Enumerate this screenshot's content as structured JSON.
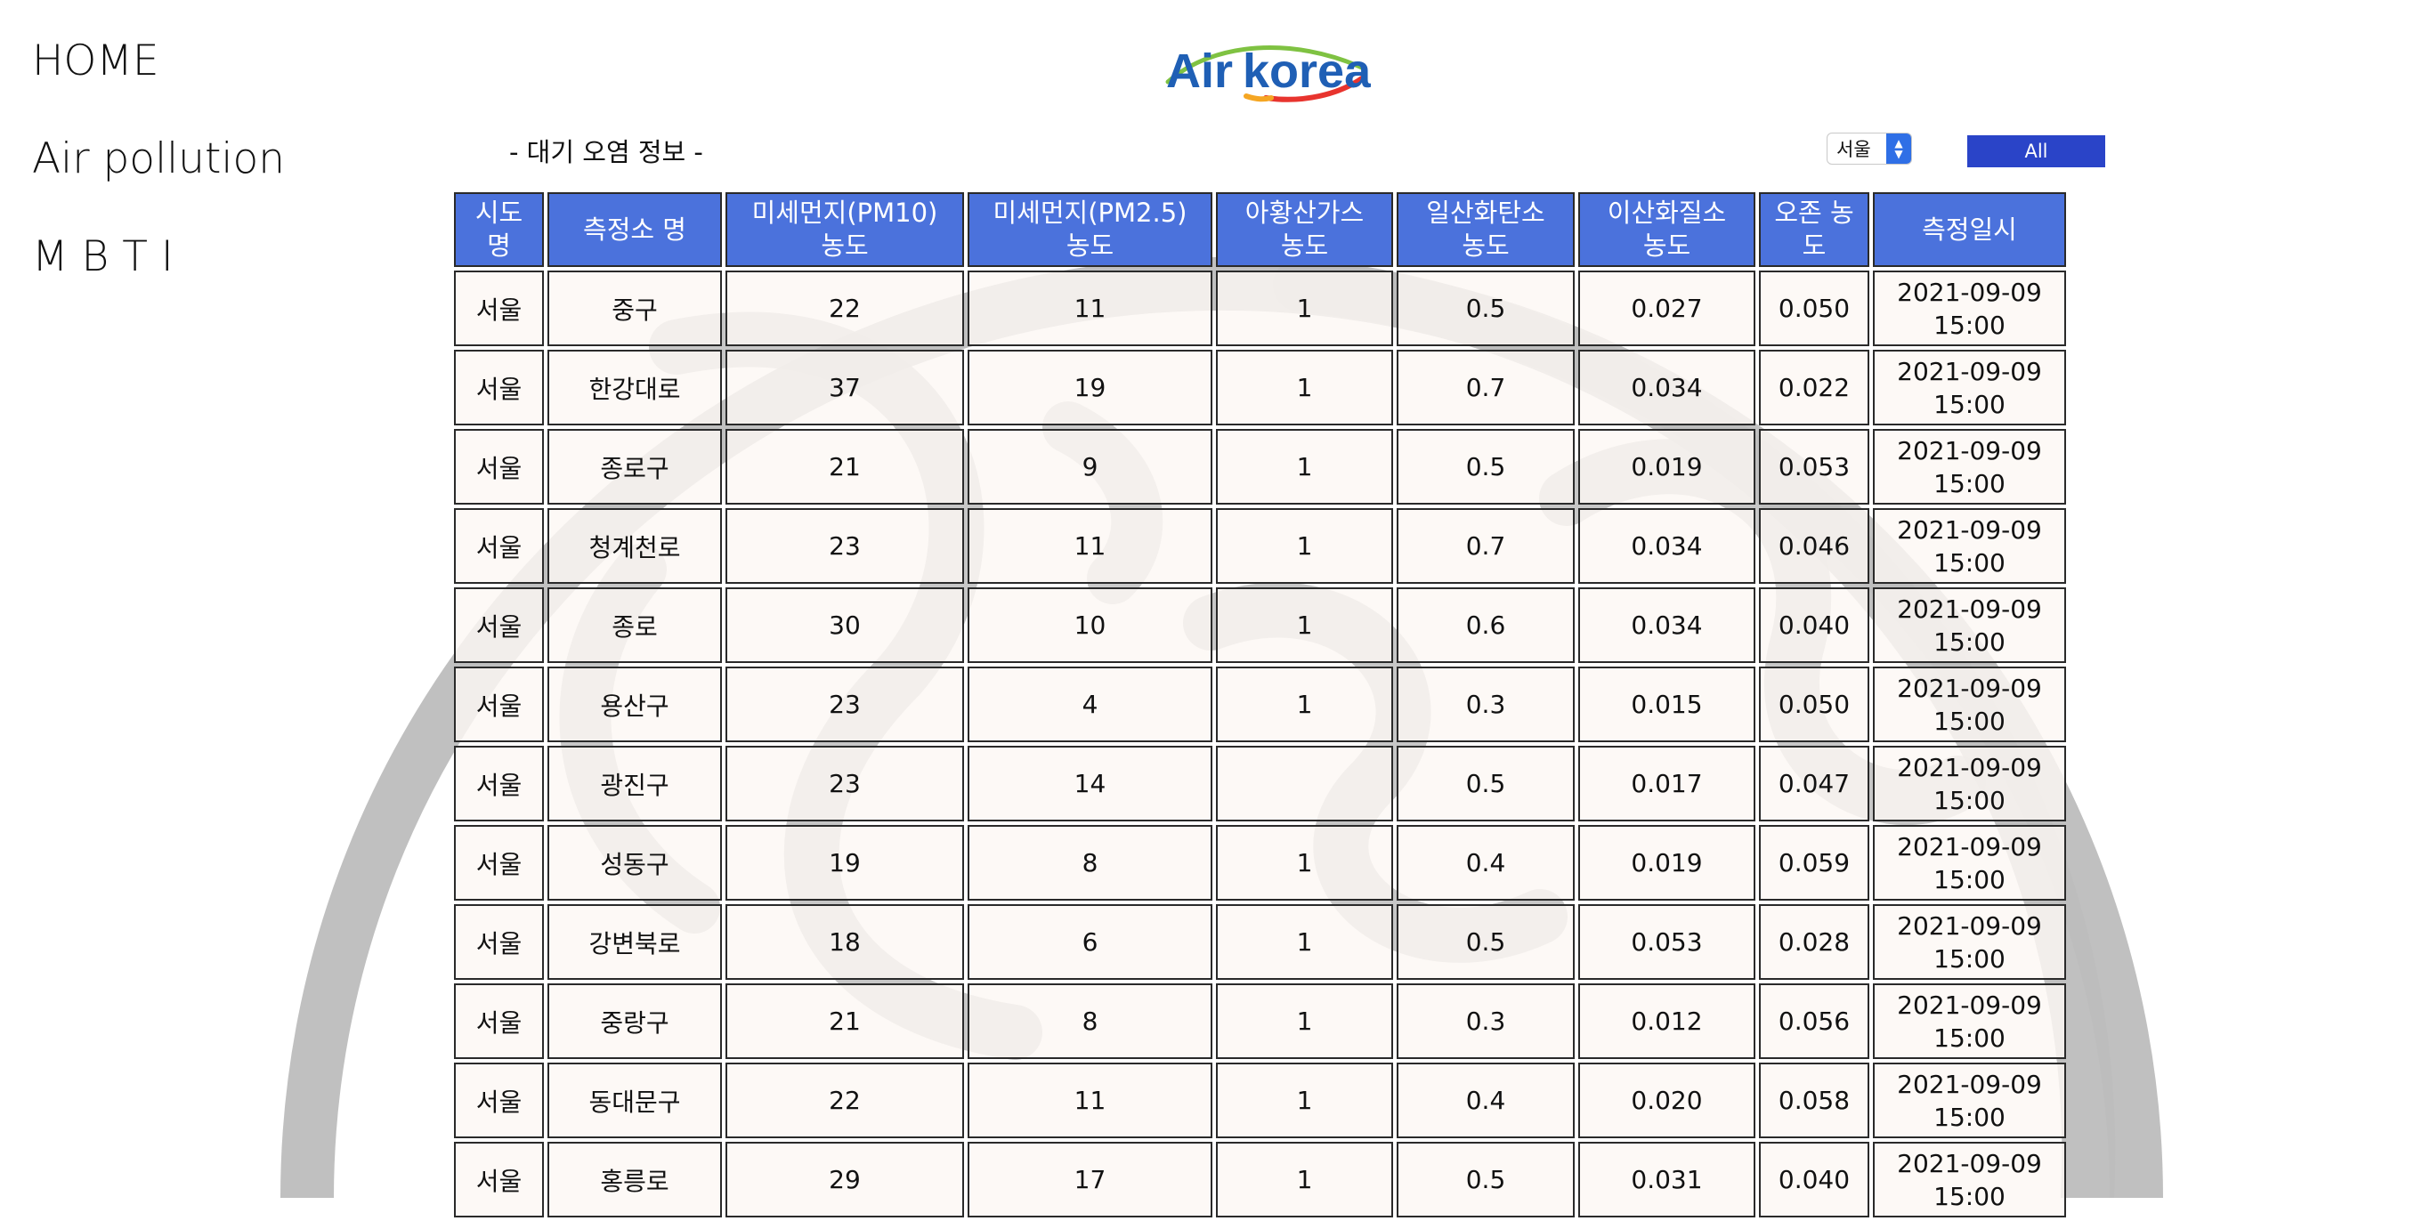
{
  "nav": {
    "items": [
      {
        "label": "HOME"
      },
      {
        "label": "Air pollution"
      },
      {
        "label": "M B T I"
      }
    ]
  },
  "logo": {
    "text_air": "Air",
    "text_korea": "korea"
  },
  "section_title": "- 대기 오염 정보 -",
  "region_select": {
    "value": "서울"
  },
  "all_button": {
    "label": "All"
  },
  "colors": {
    "header_bg": "#4b72dc",
    "button_bg": "#2a44c8",
    "cell_bg": "#fcf8f4"
  },
  "table": {
    "headers": [
      {
        "l1": "시도",
        "l2": "명"
      },
      {
        "l1": "측정소 명",
        "l2": ""
      },
      {
        "l1": "미세먼지(PM10)",
        "l2": "농도"
      },
      {
        "l1": "미세먼지(PM2.5)",
        "l2": "농도"
      },
      {
        "l1": "아황산가스",
        "l2": "농도"
      },
      {
        "l1": "일산화탄소",
        "l2": "농도"
      },
      {
        "l1": "이산화질소",
        "l2": "농도"
      },
      {
        "l1": "오존 농",
        "l2": "도"
      },
      {
        "l1": "측정일시",
        "l2": ""
      }
    ],
    "rows": [
      {
        "sido": "서울",
        "station": "중구",
        "pm10": "22",
        "pm25": "11",
        "so2": "1",
        "co": "0.5",
        "no2": "0.027",
        "o3": "0.050",
        "date": "2021-09-09",
        "time": "15:00"
      },
      {
        "sido": "서울",
        "station": "한강대로",
        "pm10": "37",
        "pm25": "19",
        "so2": "1",
        "co": "0.7",
        "no2": "0.034",
        "o3": "0.022",
        "date": "2021-09-09",
        "time": "15:00"
      },
      {
        "sido": "서울",
        "station": "종로구",
        "pm10": "21",
        "pm25": "9",
        "so2": "1",
        "co": "0.5",
        "no2": "0.019",
        "o3": "0.053",
        "date": "2021-09-09",
        "time": "15:00"
      },
      {
        "sido": "서울",
        "station": "청계천로",
        "pm10": "23",
        "pm25": "11",
        "so2": "1",
        "co": "0.7",
        "no2": "0.034",
        "o3": "0.046",
        "date": "2021-09-09",
        "time": "15:00"
      },
      {
        "sido": "서울",
        "station": "종로",
        "pm10": "30",
        "pm25": "10",
        "so2": "1",
        "co": "0.6",
        "no2": "0.034",
        "o3": "0.040",
        "date": "2021-09-09",
        "time": "15:00"
      },
      {
        "sido": "서울",
        "station": "용산구",
        "pm10": "23",
        "pm25": "4",
        "so2": "1",
        "co": "0.3",
        "no2": "0.015",
        "o3": "0.050",
        "date": "2021-09-09",
        "time": "15:00"
      },
      {
        "sido": "서울",
        "station": "광진구",
        "pm10": "23",
        "pm25": "14",
        "so2": "",
        "co": "0.5",
        "no2": "0.017",
        "o3": "0.047",
        "date": "2021-09-09",
        "time": "15:00"
      },
      {
        "sido": "서울",
        "station": "성동구",
        "pm10": "19",
        "pm25": "8",
        "so2": "1",
        "co": "0.4",
        "no2": "0.019",
        "o3": "0.059",
        "date": "2021-09-09",
        "time": "15:00"
      },
      {
        "sido": "서울",
        "station": "강변북로",
        "pm10": "18",
        "pm25": "6",
        "so2": "1",
        "co": "0.5",
        "no2": "0.053",
        "o3": "0.028",
        "date": "2021-09-09",
        "time": "15:00"
      },
      {
        "sido": "서울",
        "station": "중랑구",
        "pm10": "21",
        "pm25": "8",
        "so2": "1",
        "co": "0.3",
        "no2": "0.012",
        "o3": "0.056",
        "date": "2021-09-09",
        "time": "15:00"
      },
      {
        "sido": "서울",
        "station": "동대문구",
        "pm10": "22",
        "pm25": "11",
        "so2": "1",
        "co": "0.4",
        "no2": "0.020",
        "o3": "0.058",
        "date": "2021-09-09",
        "time": "15:00"
      },
      {
        "sido": "서울",
        "station": "홍릉로",
        "pm10": "29",
        "pm25": "17",
        "so2": "1",
        "co": "0.5",
        "no2": "0.031",
        "o3": "0.040",
        "date": "2021-09-09",
        "time": "15:00"
      }
    ]
  }
}
